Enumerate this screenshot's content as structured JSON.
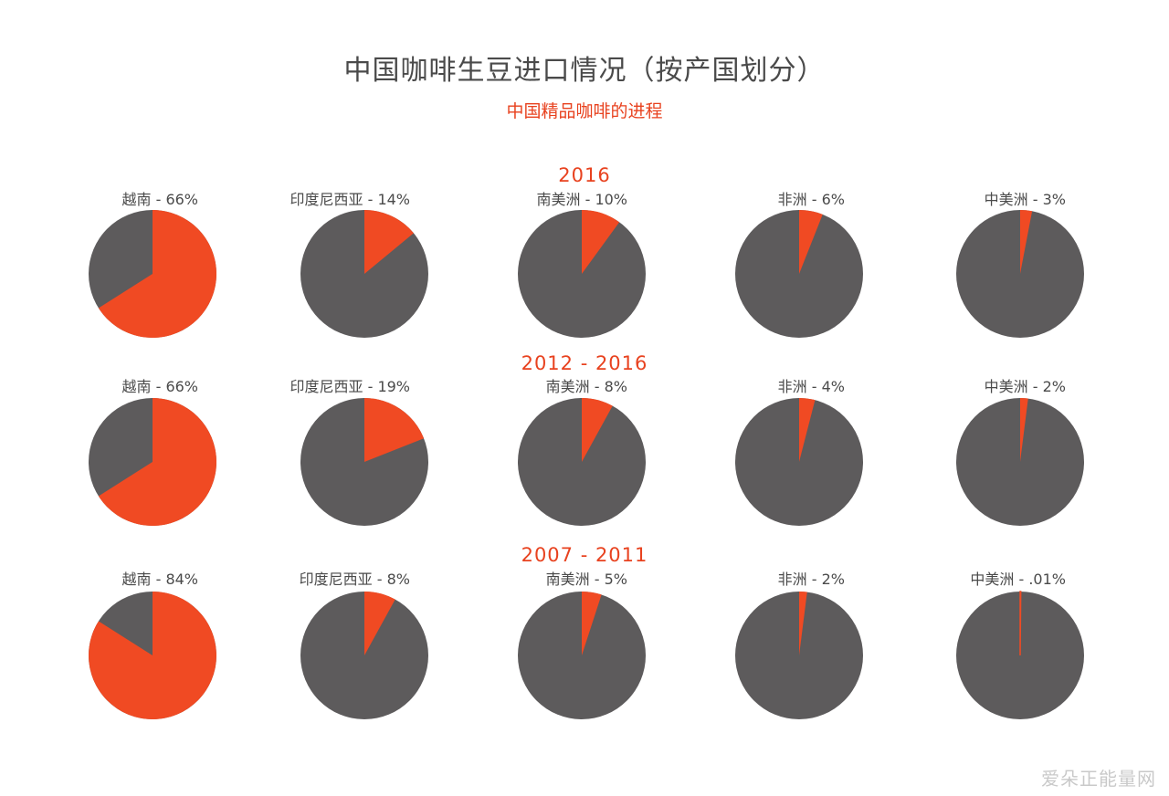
{
  "title": "中国咖啡生豆进口情况（按产国划分）",
  "subtitle": "中国精品咖啡的进程",
  "colors": {
    "highlight": "#f04a23",
    "rest": "#5d5b5c",
    "title": "#4a4a4a",
    "accent": "#e8421f"
  },
  "watermark": "爱朵正能量网",
  "chart_data": [
    {
      "type": "pie",
      "period": "2016",
      "slices": [
        {
          "country": "越南",
          "label": "- 66%",
          "value": 66
        },
        {
          "country": "印度尼西亚",
          "label": "- 14%",
          "value": 14
        },
        {
          "country": "南美洲",
          "label": "- 10%",
          "value": 10
        },
        {
          "country": "非洲",
          "label": "- 6%",
          "value": 6
        },
        {
          "country": "中美洲",
          "label": "- 3%",
          "value": 3
        }
      ]
    },
    {
      "type": "pie",
      "period": "2012 - 2016",
      "slices": [
        {
          "country": "越南",
          "label": "- 66%",
          "value": 66
        },
        {
          "country": "印度尼西亚",
          "label": "- 19%",
          "value": 19
        },
        {
          "country": "南美洲",
          "label": "- 8%",
          "value": 8
        },
        {
          "country": "非洲",
          "label": "- 4%",
          "value": 4
        },
        {
          "country": "中美洲",
          "label": "- 2%",
          "value": 2
        }
      ]
    },
    {
      "type": "pie",
      "period": "2007 - 2011",
      "slices": [
        {
          "country": "越南",
          "label": "- 84%",
          "value": 84
        },
        {
          "country": "印度尼西亚",
          "label": "- 8%",
          "value": 8
        },
        {
          "country": "南美洲",
          "label": "- 5%",
          "value": 5
        },
        {
          "country": "非洲",
          "label": "- 2%",
          "value": 2
        },
        {
          "country": "中美洲",
          "label": "- .01%",
          "value": 0.01
        }
      ]
    }
  ]
}
